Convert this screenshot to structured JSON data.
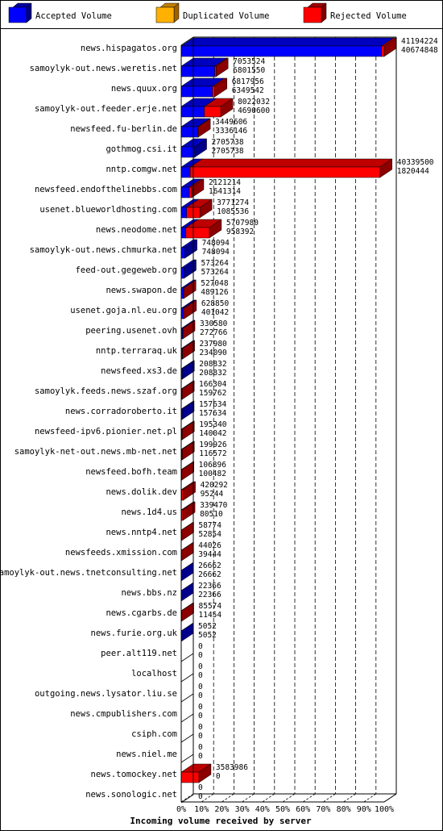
{
  "legend": {
    "accepted": "Accepted Volume",
    "duplicated": "Duplicated Volume",
    "rejected": "Rejected Volume"
  },
  "colors": {
    "accepted": "#0000ff",
    "duplicated": "#ffb000",
    "rejected": "#ff0000"
  },
  "chart_data": {
    "type": "bar",
    "orientation": "horizontal",
    "title": "",
    "xlabel": "Incoming volume received by server",
    "ylabel": "",
    "xlim": [
      0,
      100
    ],
    "x_ticks": [
      "0%",
      "10%",
      "20%",
      "30%",
      "40%",
      "50%",
      "60%",
      "70%",
      "80%",
      "90%",
      "100%"
    ],
    "grid": true,
    "legend_position": "top",
    "max_value": 41194224,
    "series": [
      {
        "name": "Accepted Volume",
        "key": "accepted"
      },
      {
        "name": "Duplicated Volume",
        "key": "duplicated"
      },
      {
        "name": "Rejected Volume",
        "key": "rejected"
      }
    ],
    "categories": [
      {
        "server": "news.hispagatos.org",
        "total": 41194224,
        "accepted": 40674848
      },
      {
        "server": "samoylyk-out.news.weretis.net",
        "total": 7053524,
        "accepted": 6801550
      },
      {
        "server": "news.quux.org",
        "total": 6817956,
        "accepted": 6349542
      },
      {
        "server": "samoylyk-out.feeder.erje.net",
        "total": 8022032,
        "accepted": 4690600
      },
      {
        "server": "newsfeed.fu-berlin.de",
        "total": 3449606,
        "accepted": 3336146
      },
      {
        "server": "gothmog.csi.it",
        "total": 2705738,
        "accepted": 2705738
      },
      {
        "server": "nntp.comgw.net",
        "total": 40339500,
        "accepted": 1820444
      },
      {
        "server": "newsfeed.endofthelinebbs.com",
        "total": 2121214,
        "accepted": 1641314
      },
      {
        "server": "usenet.blueworldhosting.com",
        "total": 3771274,
        "accepted": 1085536
      },
      {
        "server": "news.neodome.net",
        "total": 5707980,
        "accepted": 958392
      },
      {
        "server": "samoylyk-out.news.chmurka.net",
        "total": 748094,
        "accepted": 748094
      },
      {
        "server": "feed-out.gegeweb.org",
        "total": 573264,
        "accepted": 573264
      },
      {
        "server": "news.swapon.de",
        "total": 527048,
        "accepted": 489126
      },
      {
        "server": "usenet.goja.nl.eu.org",
        "total": 628850,
        "accepted": 401042
      },
      {
        "server": "peering.usenet.ovh",
        "total": 330580,
        "accepted": 272766
      },
      {
        "server": "nntp.terraraq.uk",
        "total": 237980,
        "accepted": 234090
      },
      {
        "server": "newsfeed.xs3.de",
        "total": 208832,
        "accepted": 208832
      },
      {
        "server": "samoylyk.feeds.news.szaf.org",
        "total": 166304,
        "accepted": 159762
      },
      {
        "server": "news.corradoroberto.it",
        "total": 157634,
        "accepted": 157634
      },
      {
        "server": "newsfeed-ipv6.pionier.net.pl",
        "total": 195340,
        "accepted": 140042
      },
      {
        "server": "samoylyk-net-out.news.mb-net.net",
        "total": 199926,
        "accepted": 116572
      },
      {
        "server": "newsfeed.bofh.team",
        "total": 106896,
        "accepted": 100482
      },
      {
        "server": "news.dolik.dev",
        "total": 420292,
        "accepted": 95244
      },
      {
        "server": "news.1d4.us",
        "total": 339470,
        "accepted": 80510
      },
      {
        "server": "news.nntp4.net",
        "total": 58774,
        "accepted": 52854
      },
      {
        "server": "newsfeeds.xmission.com",
        "total": 44026,
        "accepted": 39444
      },
      {
        "server": "samoylyk-out.news.tnetconsulting.net",
        "total": 26662,
        "accepted": 26662
      },
      {
        "server": "news.bbs.nz",
        "total": 22366,
        "accepted": 22366
      },
      {
        "server": "news.cgarbs.de",
        "total": 85574,
        "accepted": 11454
      },
      {
        "server": "news.furie.org.uk",
        "total": 5052,
        "accepted": 5052
      },
      {
        "server": "peer.alt119.net",
        "total": 0,
        "accepted": 0
      },
      {
        "server": "localhost",
        "total": 0,
        "accepted": 0
      },
      {
        "server": "outgoing.news.lysator.liu.se",
        "total": 0,
        "accepted": 0
      },
      {
        "server": "news.cmpublishers.com",
        "total": 0,
        "accepted": 0
      },
      {
        "server": "csiph.com",
        "total": 0,
        "accepted": 0
      },
      {
        "server": "news.niel.me",
        "total": 0,
        "accepted": 0
      },
      {
        "server": "news.tomockey.net",
        "total": 3583986,
        "accepted": 0
      },
      {
        "server": "news.sonologic.net",
        "total": 0,
        "accepted": 0
      }
    ]
  }
}
